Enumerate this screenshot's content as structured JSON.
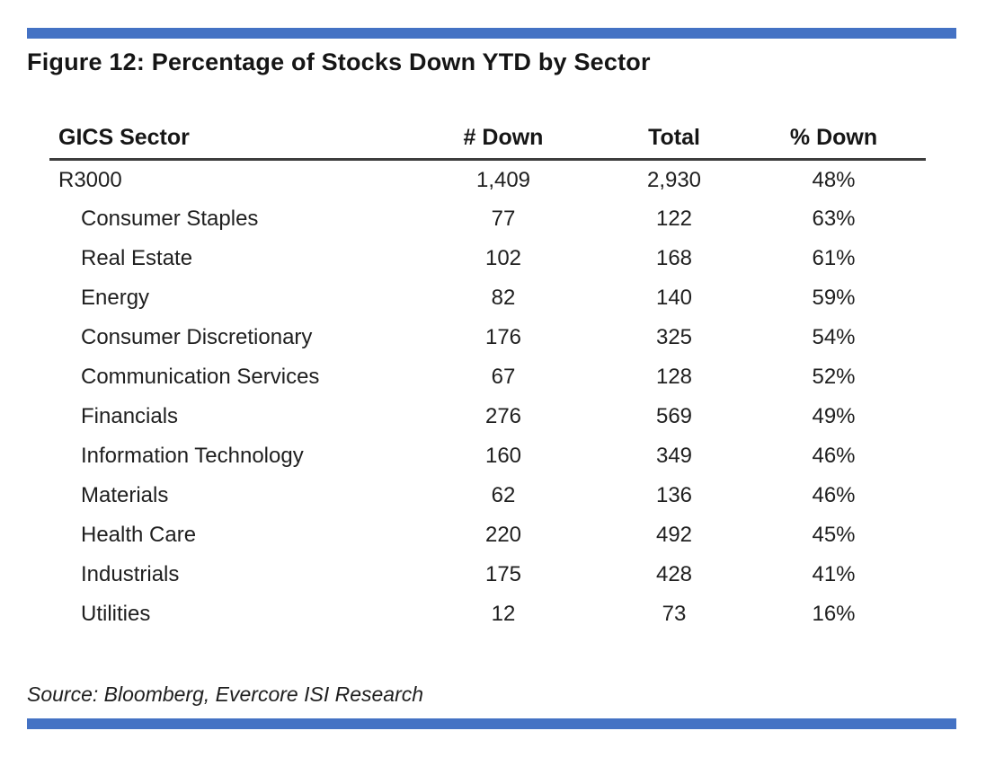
{
  "figure": {
    "title": "Figure 12: Percentage of Stocks Down YTD by Sector",
    "source": "Source: Bloomberg, Evercore ISI Research"
  },
  "colors": {
    "accent_bar": "#4472C4",
    "header_rule": "#3d3d3d",
    "text": "#1f1f1f"
  },
  "table": {
    "columns": [
      "GICS Sector",
      "# Down",
      "Total",
      "% Down"
    ],
    "rows": [
      {
        "sector": "R3000",
        "down": "1,409",
        "total": "2,930",
        "pct": "48%",
        "indent": false
      },
      {
        "sector": "Consumer Staples",
        "down": "77",
        "total": "122",
        "pct": "63%",
        "indent": true
      },
      {
        "sector": "Real Estate",
        "down": "102",
        "total": "168",
        "pct": "61%",
        "indent": true
      },
      {
        "sector": "Energy",
        "down": "82",
        "total": "140",
        "pct": "59%",
        "indent": true
      },
      {
        "sector": "Consumer Discretionary",
        "down": "176",
        "total": "325",
        "pct": "54%",
        "indent": true
      },
      {
        "sector": "Communication Services",
        "down": "67",
        "total": "128",
        "pct": "52%",
        "indent": true
      },
      {
        "sector": "Financials",
        "down": "276",
        "total": "569",
        "pct": "49%",
        "indent": true
      },
      {
        "sector": "Information Technology",
        "down": "160",
        "total": "349",
        "pct": "46%",
        "indent": true
      },
      {
        "sector": "Materials",
        "down": "62",
        "total": "136",
        "pct": "46%",
        "indent": true
      },
      {
        "sector": "Health Care",
        "down": "220",
        "total": "492",
        "pct": "45%",
        "indent": true
      },
      {
        "sector": "Industrials",
        "down": "175",
        "total": "428",
        "pct": "41%",
        "indent": true
      },
      {
        "sector": "Utilities",
        "down": "12",
        "total": "73",
        "pct": "16%",
        "indent": true
      }
    ]
  },
  "chart_data": {
    "type": "table",
    "title": "Figure 12: Percentage of Stocks Down YTD by Sector",
    "columns": [
      "GICS Sector",
      "# Down",
      "Total",
      "% Down"
    ],
    "rows": [
      [
        "R3000",
        1409,
        2930,
        "48%"
      ],
      [
        "Consumer Staples",
        77,
        122,
        "63%"
      ],
      [
        "Real Estate",
        102,
        168,
        "61%"
      ],
      [
        "Energy",
        82,
        140,
        "59%"
      ],
      [
        "Consumer Discretionary",
        176,
        325,
        "54%"
      ],
      [
        "Communication Services",
        67,
        128,
        "52%"
      ],
      [
        "Financials",
        276,
        569,
        "49%"
      ],
      [
        "Information Technology",
        160,
        349,
        "46%"
      ],
      [
        "Materials",
        62,
        136,
        "46%"
      ],
      [
        "Health Care",
        220,
        492,
        "45%"
      ],
      [
        "Industrials",
        175,
        428,
        "41%"
      ],
      [
        "Utilities",
        12,
        73,
        "16%"
      ]
    ],
    "source": "Source: Bloomberg, Evercore ISI Research"
  }
}
